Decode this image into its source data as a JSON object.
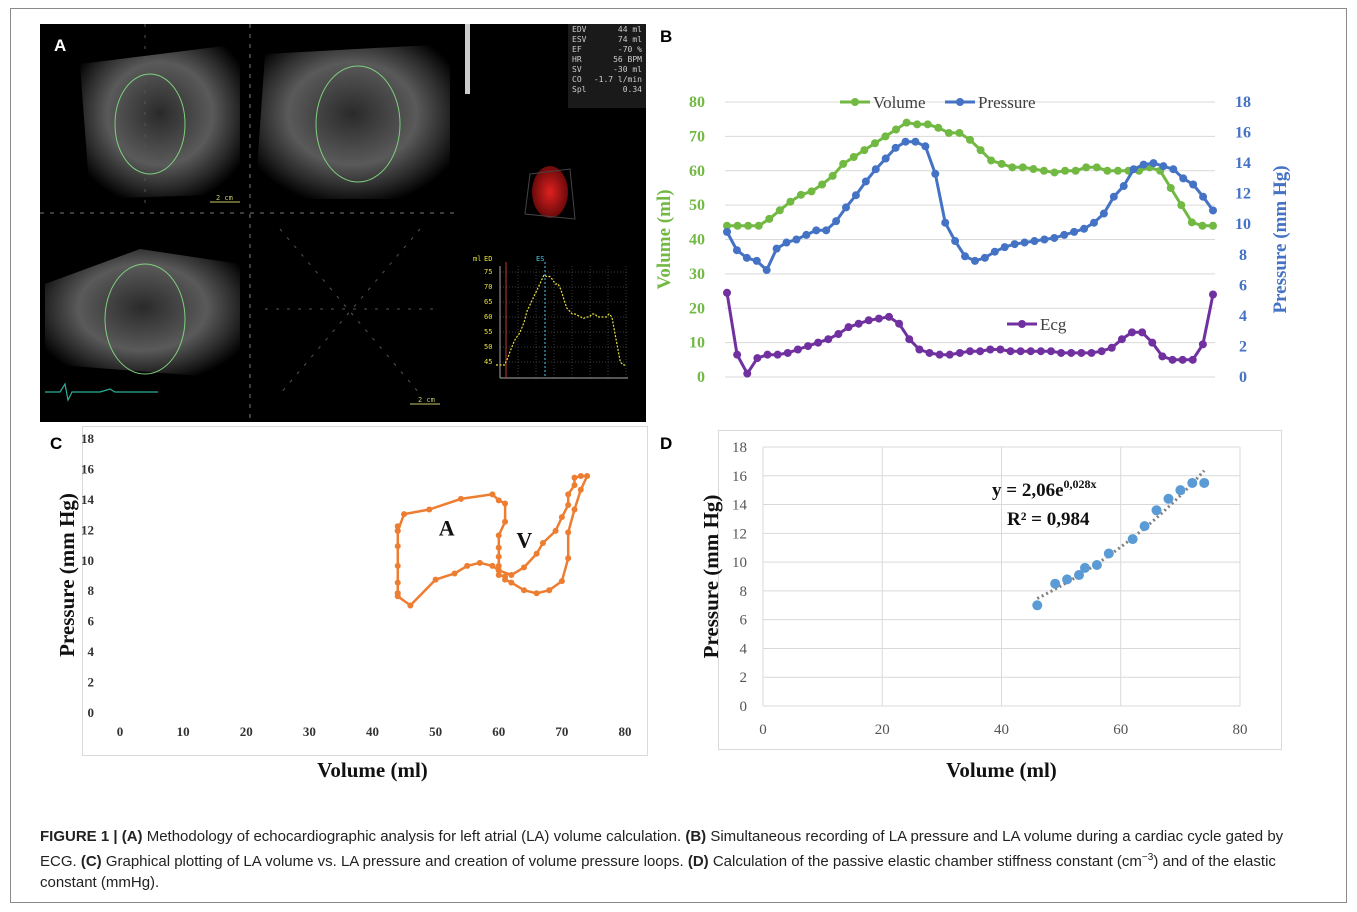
{
  "panels": {
    "a": "A",
    "b": "B",
    "c": "C",
    "d": "D"
  },
  "panel_a": {
    "measurements": [
      {
        "label": "EDV",
        "value": "44 ml"
      },
      {
        "label": "ESV",
        "value": "74 ml"
      },
      {
        "label": "EF",
        "value": "-70 %"
      },
      {
        "label": "HR",
        "value": "56 BPM"
      },
      {
        "label": "SV",
        "value": "-30 ml"
      },
      {
        "label": "CO",
        "value": "-1.7 l/min"
      },
      {
        "label": "Spl",
        "value": "0.34"
      }
    ],
    "scale_labels": [
      "2 cm",
      "2 cm"
    ],
    "mini_curve": {
      "unit_label": "ml",
      "ed_label": "ED",
      "es_label": "ES",
      "yticks": [
        "75",
        "70",
        "65",
        "60",
        "55",
        "50",
        "45"
      ]
    }
  },
  "chart_data": [
    {
      "id": "B",
      "type": "line",
      "legend": [
        "Volume",
        "Pressure",
        "Ecg"
      ],
      "ylabel": "Volume (ml)",
      "y2label": "Pressure (mm Hg)",
      "ylim": [
        0,
        80
      ],
      "y2lim": [
        0,
        18
      ],
      "yticks": [
        0,
        10,
        20,
        30,
        40,
        50,
        60,
        70,
        80
      ],
      "y2ticks": [
        0,
        2,
        4,
        6,
        8,
        10,
        12,
        14,
        16,
        18
      ],
      "colors": {
        "Volume": "#72b944",
        "Pressure": "#4472c4",
        "Ecg": "#7030a0"
      },
      "series": [
        {
          "name": "Volume",
          "axis": "left",
          "values": [
            44,
            44,
            44,
            44,
            46,
            48.5,
            51,
            53,
            54,
            56,
            58.5,
            62,
            64,
            66,
            68,
            70,
            72,
            74,
            73.5,
            73.5,
            72.5,
            71,
            71,
            69,
            66,
            63,
            62,
            61,
            61,
            60.5,
            60,
            59.5,
            60,
            60,
            61,
            61,
            60,
            60,
            60,
            60,
            61,
            60,
            55,
            50,
            45,
            44,
            44
          ]
        },
        {
          "name": "Pressure",
          "axis": "right",
          "values": [
            9.5,
            8.3,
            7.8,
            7.6,
            7.0,
            8.4,
            8.8,
            9.0,
            9.3,
            9.6,
            9.6,
            10.2,
            11.1,
            11.9,
            12.8,
            13.6,
            14.3,
            15.0,
            15.4,
            15.4,
            15.1,
            13.3,
            10.1,
            8.9,
            7.9,
            7.6,
            7.8,
            8.2,
            8.5,
            8.7,
            8.8,
            8.9,
            9.0,
            9.1,
            9.3,
            9.5,
            9.7,
            10.1,
            10.7,
            11.8,
            12.5,
            13.6,
            13.9,
            14.0,
            13.8,
            13.6,
            13.0,
            12.6,
            11.8,
            10.9
          ]
        },
        {
          "name": "Ecg",
          "axis": "left",
          "values": [
            24.5,
            6.5,
            1.0,
            5.5,
            6.5,
            6.5,
            7.0,
            8.0,
            9.0,
            10.0,
            11.0,
            12.5,
            14.5,
            15.5,
            16.5,
            17.0,
            17.5,
            15.5,
            11.0,
            8.0,
            7.0,
            6.5,
            6.5,
            7.0,
            7.5,
            7.5,
            8.0,
            8.0,
            7.5,
            7.5,
            7.5,
            7.5,
            7.5,
            7.0,
            7.0,
            7.0,
            7.0,
            7.5,
            8.5,
            11.0,
            13.0,
            13.0,
            10.0,
            6.0,
            5.0,
            5.0,
            5.0,
            9.5,
            24.0
          ]
        }
      ]
    },
    {
      "id": "C",
      "type": "scatter",
      "xlabel": "Volume (ml)",
      "ylabel": "Pressure (mm Hg)",
      "xlim": [
        0,
        80
      ],
      "ylim": [
        0,
        18
      ],
      "xticks": [
        0,
        10,
        20,
        30,
        40,
        50,
        60,
        70,
        80
      ],
      "yticks": [
        0,
        2,
        4,
        6,
        8,
        10,
        12,
        14,
        16,
        18
      ],
      "annotations": [
        "A",
        "V"
      ],
      "color": "#ed7d31",
      "series": [
        {
          "x": [
            44,
            44,
            44,
            44,
            44,
            44,
            44,
            45,
            49,
            54,
            59,
            60,
            61,
            61,
            60,
            60,
            60,
            60,
            60,
            60,
            61,
            61,
            62,
            64,
            66,
            68,
            70,
            71,
            71,
            72,
            73,
            74,
            73,
            72,
            72,
            71,
            71,
            70,
            69,
            67,
            66,
            64,
            62,
            60,
            59,
            57,
            55,
            53,
            50,
            46,
            44,
            44
          ],
          "y": [
            7.8,
            8.5,
            9.6,
            10.9,
            11.9,
            12.2,
            11.9,
            13.0,
            13.3,
            14.0,
            14.3,
            13.9,
            13.7,
            12.5,
            11.6,
            10.8,
            10.2,
            9.6,
            9.3,
            9.0,
            8.9,
            8.7,
            8.5,
            8.0,
            7.8,
            8.0,
            8.6,
            10.1,
            11.8,
            13.3,
            14.6,
            15.5,
            15.5,
            15.4,
            14.9,
            14.3,
            13.6,
            12.8,
            11.9,
            11.1,
            10.4,
            9.5,
            9.0,
            9.3,
            9.6,
            9.8,
            9.6,
            9.1,
            8.7,
            7.0,
            7.6,
            7.8
          ]
        }
      ]
    },
    {
      "id": "D",
      "type": "scatter",
      "xlabel": "Volume (ml)",
      "ylabel": "Pressure (mm Hg)",
      "xlim": [
        0,
        80
      ],
      "ylim": [
        0,
        18
      ],
      "xticks": [
        0,
        20,
        40,
        60,
        80
      ],
      "yticks": [
        0,
        2,
        4,
        6,
        8,
        10,
        12,
        14,
        16,
        18
      ],
      "equation_main": "y = 2,06e",
      "equation_exp": "0,028x",
      "r2": "R² = 0,984",
      "color": "#5b9bd5",
      "trend_color": "#808080",
      "trend": {
        "a": 2.06,
        "b": 0.028,
        "x_range": [
          46,
          74
        ]
      },
      "series": [
        {
          "x": [
            46,
            49,
            51,
            53,
            54,
            56,
            58,
            62,
            64,
            66,
            68,
            70,
            72,
            74
          ],
          "y": [
            7.0,
            8.5,
            8.8,
            9.1,
            9.6,
            9.8,
            10.6,
            11.6,
            12.5,
            13.6,
            14.4,
            15.0,
            15.5,
            15.5
          ]
        }
      ]
    }
  ],
  "caption": {
    "prefix": "FIGURE 1 | ",
    "parts": [
      {
        "bold": "(A)",
        "text": " Methodology of echocardiographic analysis for left atrial (LA) volume calculation. "
      },
      {
        "bold": "(B)",
        "text": " Simultaneous recording of LA pressure and LA volume during a cardiac cycle gated by ECG. "
      },
      {
        "bold": "(C)",
        "text": " Graphical plotting of LA volume vs. LA pressure and creation of volume pressure loops. "
      },
      {
        "bold": "(D)",
        "text": " Calculation of the passive elastic chamber stiffness constant (cm"
      },
      {
        "bold": "",
        "text": "−3"
      },
      {
        "bold": "",
        "text": ") and of the elastic constant (mmHg)."
      }
    ]
  }
}
